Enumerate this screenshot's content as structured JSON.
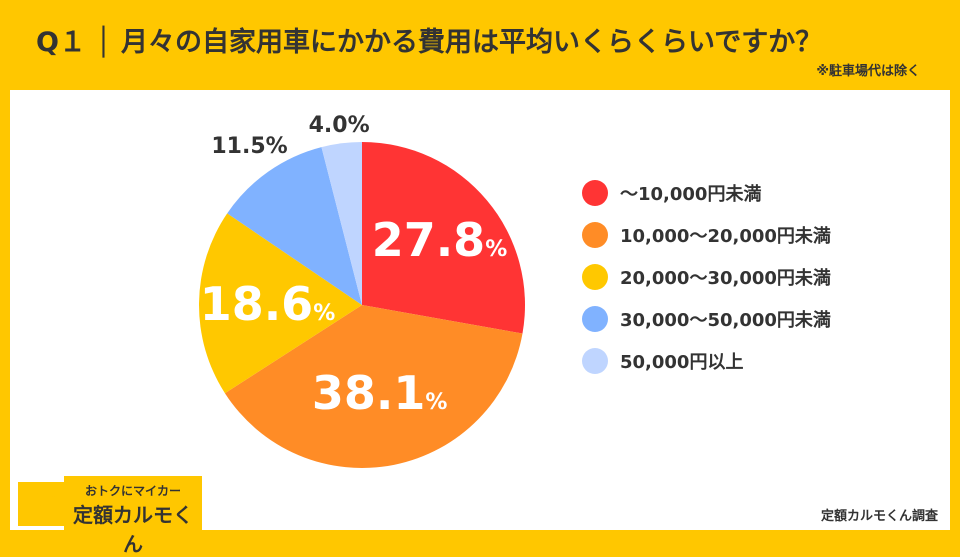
{
  "header": {
    "title": "Q１ │ 月々の自家用車にかかる費用は平均いくらくらいですか？",
    "note": "※駐車場代は除く"
  },
  "logo": {
    "line1": "おトクにマイカー",
    "line2": "定額カルモくん"
  },
  "credit": "定額カルモくん調査",
  "chart_data": {
    "type": "pie",
    "start": "top",
    "direction": "clockwise",
    "categories": [
      "〜10,000円未満",
      "10,000〜20,000円未満",
      "20,000〜30,000円未満",
      "30,000〜50,000円未満",
      "50,000円以上"
    ],
    "values": [
      27.8,
      38.1,
      18.6,
      11.5,
      4.0
    ],
    "labels": [
      "27.8",
      "38.1",
      "18.6",
      "11.5%",
      "4.0%"
    ],
    "colors": [
      "#FF3434",
      "#FF8C26",
      "#FFC800",
      "#80B2FF",
      "#BFD5FF"
    ],
    "legend": "right"
  }
}
